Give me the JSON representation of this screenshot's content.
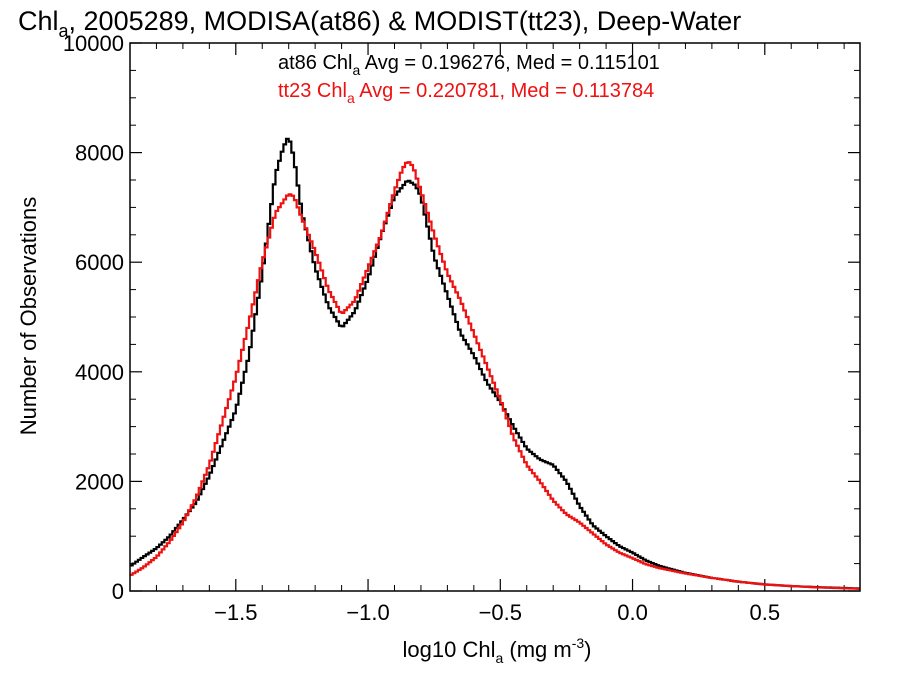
{
  "chart_data": {
    "type": "line",
    "title": {
      "pre": "Chl",
      "sub": "a",
      "post": ", 2005289, MODISA(at86) & MODIST(tt23), Deep-Water"
    },
    "xlabel": {
      "pre": "log10 Chl",
      "sub": "a",
      "mid": " (mg m",
      "sup": "-3",
      "post": ")"
    },
    "ylabel": "Number of Observations",
    "xlim": [
      -1.9,
      0.86
    ],
    "ylim": [
      0,
      10000
    ],
    "x_ticks": [
      {
        "value": -1.5,
        "label": "-1.5"
      },
      {
        "value": -1.0,
        "label": "-1.0"
      },
      {
        "value": -0.5,
        "label": "-0.5"
      },
      {
        "value": 0.0,
        "label": "0.0"
      },
      {
        "value": 0.5,
        "label": "0.5"
      }
    ],
    "y_ticks": [
      {
        "value": 0,
        "label": "0"
      },
      {
        "value": 2000,
        "label": "2000"
      },
      {
        "value": 4000,
        "label": "4000"
      },
      {
        "value": 6000,
        "label": "6000"
      },
      {
        "value": 8000,
        "label": "8000"
      },
      {
        "value": 10000,
        "label": "10000"
      }
    ],
    "annotations": [
      {
        "pre": "at86 Chl",
        "sub": "a",
        "post": " Avg = 0.196276, Med = 0.115101",
        "color": "#000000"
      },
      {
        "pre": "tt23 Chl",
        "sub": "a",
        "post": " Avg = 0.220781, Med = 0.113784",
        "color": "#ee1111"
      }
    ],
    "series": [
      {
        "color": "#000000",
        "x": [
          -1.9,
          -1.85,
          -1.8,
          -1.75,
          -1.7,
          -1.65,
          -1.6,
          -1.55,
          -1.5,
          -1.45,
          -1.4,
          -1.35,
          -1.32,
          -1.3,
          -1.28,
          -1.25,
          -1.2,
          -1.15,
          -1.1,
          -1.05,
          -1.0,
          -0.95,
          -0.9,
          -0.85,
          -0.82,
          -0.8,
          -0.75,
          -0.7,
          -0.65,
          -0.6,
          -0.55,
          -0.5,
          -0.45,
          -0.4,
          -0.35,
          -0.3,
          -0.25,
          -0.2,
          -0.15,
          -0.1,
          -0.05,
          0.0,
          0.05,
          0.1,
          0.2,
          0.3,
          0.4,
          0.5,
          0.6,
          0.7,
          0.8,
          0.86
        ],
        "y": [
          450,
          620,
          780,
          1000,
          1300,
          1620,
          2100,
          2700,
          3300,
          4300,
          5800,
          7600,
          8100,
          8300,
          7900,
          6900,
          5900,
          5200,
          4800,
          5100,
          5700,
          6500,
          7200,
          7500,
          7400,
          7200,
          6100,
          5400,
          4700,
          4300,
          3800,
          3450,
          3000,
          2600,
          2400,
          2300,
          2000,
          1550,
          1200,
          1000,
          820,
          700,
          560,
          460,
          330,
          240,
          170,
          120,
          90,
          70,
          55,
          45
        ]
      },
      {
        "color": "#ee1111",
        "x": [
          -1.9,
          -1.85,
          -1.8,
          -1.75,
          -1.7,
          -1.65,
          -1.6,
          -1.55,
          -1.5,
          -1.45,
          -1.4,
          -1.35,
          -1.3,
          -1.28,
          -1.25,
          -1.2,
          -1.15,
          -1.1,
          -1.05,
          -1.0,
          -0.95,
          -0.9,
          -0.87,
          -0.85,
          -0.83,
          -0.8,
          -0.75,
          -0.7,
          -0.65,
          -0.6,
          -0.55,
          -0.5,
          -0.45,
          -0.4,
          -0.35,
          -0.3,
          -0.25,
          -0.2,
          -0.15,
          -0.1,
          -0.05,
          0.0,
          0.05,
          0.1,
          0.2,
          0.3,
          0.4,
          0.5,
          0.6,
          0.7,
          0.8,
          0.86
        ],
        "y": [
          280,
          430,
          620,
          900,
          1250,
          1700,
          2300,
          3100,
          3900,
          4900,
          6000,
          6900,
          7250,
          7200,
          6800,
          6200,
          5500,
          5050,
          5300,
          5900,
          6500,
          7300,
          7700,
          7850,
          7750,
          7300,
          6500,
          5800,
          5300,
          4700,
          4100,
          3500,
          2800,
          2300,
          2000,
          1650,
          1400,
          1250,
          1050,
          850,
          700,
          600,
          490,
          420,
          320,
          240,
          170,
          120,
          90,
          65,
          50,
          40
        ]
      }
    ]
  }
}
